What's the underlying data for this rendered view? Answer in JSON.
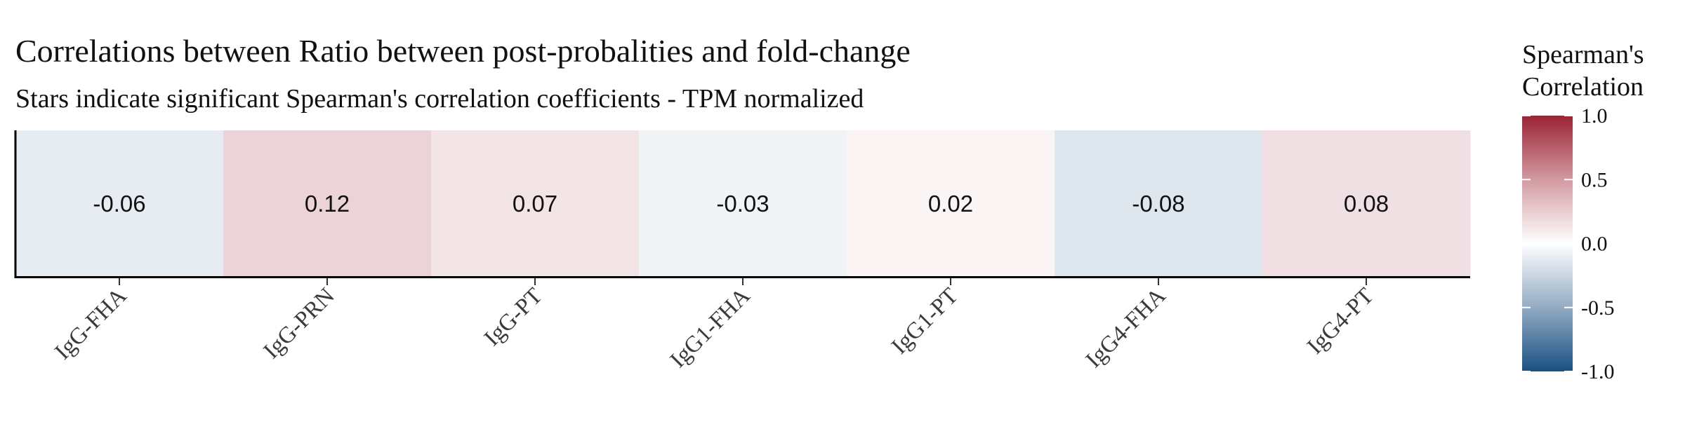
{
  "chart_data": {
    "type": "heatmap",
    "title": "Correlations between Ratio between post-probalities and fold-change",
    "subtitle": "Stars indicate significant Spearman's correlation coefficients - TPM normalized",
    "categories": [
      "IgG-FHA",
      "IgG-PRN",
      "IgG-PT",
      "IgG1-FHA",
      "IgG1-PT",
      "IgG4-FHA",
      "IgG4-PT"
    ],
    "values": [
      -0.06,
      0.12,
      0.07,
      -0.03,
      0.02,
      -0.08,
      0.08
    ],
    "value_labels": [
      "-0.06",
      "0.12",
      "0.07",
      "-0.03",
      "0.02",
      "-0.08",
      "0.08"
    ],
    "legend": {
      "title_line1": "Spearman's",
      "title_line2": "Correlation",
      "range": [
        -1.0,
        1.0
      ],
      "ticks": [
        1.0,
        0.5,
        0.0,
        -0.5,
        -1.0
      ],
      "tick_labels": [
        "1.0",
        "0.5",
        "0.0",
        "-0.5",
        "-1.0"
      ],
      "placement": "right"
    },
    "colors": {
      "low": "#1a5083",
      "mid": "#ffffff",
      "high": "#9b2335"
    }
  }
}
